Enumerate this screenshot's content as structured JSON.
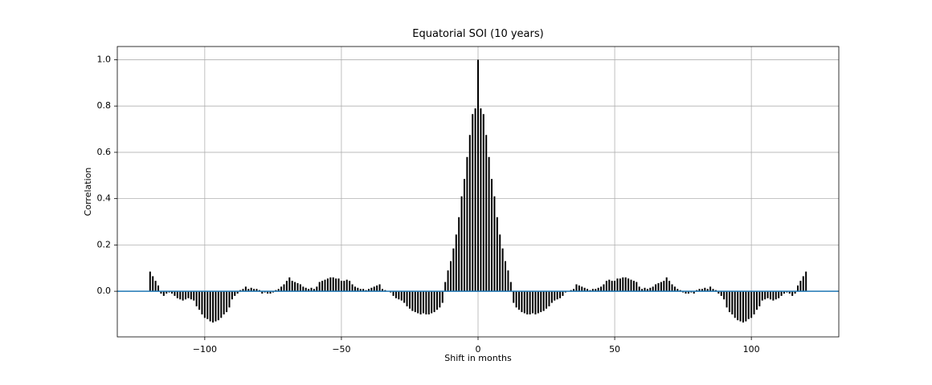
{
  "chart_data": {
    "type": "vlines",
    "title": "Equatorial SOI (10 years)",
    "xlabel": "Shift in months",
    "ylabel": "Correlation",
    "x": [
      -120,
      -119,
      -118,
      -117,
      -116,
      -115,
      -114,
      -113,
      -112,
      -111,
      -110,
      -109,
      -108,
      -107,
      -106,
      -105,
      -104,
      -103,
      -102,
      -101,
      -100,
      -99,
      -98,
      -97,
      -96,
      -95,
      -94,
      -93,
      -92,
      -91,
      -90,
      -89,
      -88,
      -87,
      -86,
      -85,
      -84,
      -83,
      -82,
      -81,
      -80,
      -79,
      -78,
      -77,
      -76,
      -75,
      -74,
      -73,
      -72,
      -71,
      -70,
      -69,
      -68,
      -67,
      -66,
      -65,
      -64,
      -63,
      -62,
      -61,
      -60,
      -59,
      -58,
      -57,
      -56,
      -55,
      -54,
      -53,
      -52,
      -51,
      -50,
      -49,
      -48,
      -47,
      -46,
      -45,
      -44,
      -43,
      -42,
      -41,
      -40,
      -39,
      -38,
      -37,
      -36,
      -35,
      -34,
      -33,
      -32,
      -31,
      -30,
      -29,
      -28,
      -27,
      -26,
      -25,
      -24,
      -23,
      -22,
      -21,
      -20,
      -19,
      -18,
      -17,
      -16,
      -15,
      -14,
      -13,
      -12,
      -11,
      -10,
      -9,
      -8,
      -7,
      -6,
      -5,
      -4,
      -3,
      -2,
      -1,
      0,
      1,
      2,
      3,
      4,
      5,
      6,
      7,
      8,
      9,
      10,
      11,
      12,
      13,
      14,
      15,
      16,
      17,
      18,
      19,
      20,
      21,
      22,
      23,
      24,
      25,
      26,
      27,
      28,
      29,
      30,
      31,
      32,
      33,
      34,
      35,
      36,
      37,
      38,
      39,
      40,
      41,
      42,
      43,
      44,
      45,
      46,
      47,
      48,
      49,
      50,
      51,
      52,
      53,
      54,
      55,
      56,
      57,
      58,
      59,
      60,
      61,
      62,
      63,
      64,
      65,
      66,
      67,
      68,
      69,
      70,
      71,
      72,
      73,
      74,
      75,
      76,
      77,
      78,
      79,
      80,
      81,
      82,
      83,
      84,
      85,
      86,
      87,
      88,
      89,
      90,
      91,
      92,
      93,
      94,
      95,
      96,
      97,
      98,
      99,
      100,
      101,
      102,
      103,
      104,
      105,
      106,
      107,
      108,
      109,
      110,
      111,
      112,
      113,
      114,
      115,
      116,
      117,
      118,
      119,
      120
    ],
    "values": [
      0.085,
      0.065,
      0.045,
      0.025,
      -0.01,
      -0.02,
      -0.01,
      -0.005,
      -0.01,
      -0.02,
      -0.03,
      -0.035,
      -0.04,
      -0.035,
      -0.03,
      -0.035,
      -0.04,
      -0.065,
      -0.08,
      -0.1,
      -0.115,
      -0.12,
      -0.13,
      -0.135,
      -0.13,
      -0.125,
      -0.115,
      -0.1,
      -0.09,
      -0.07,
      -0.035,
      -0.02,
      -0.01,
      0.005,
      0.01,
      0.02,
      0.01,
      0.015,
      0.01,
      0.01,
      0.005,
      -0.01,
      -0.005,
      -0.01,
      -0.01,
      -0.005,
      0.005,
      0.01,
      0.02,
      0.03,
      0.045,
      0.06,
      0.045,
      0.04,
      0.035,
      0.03,
      0.02,
      0.015,
      0.01,
      0.015,
      0.01,
      0.02,
      0.04,
      0.045,
      0.05,
      0.055,
      0.06,
      0.06,
      0.055,
      0.055,
      0.045,
      0.045,
      0.05,
      0.045,
      0.03,
      0.02,
      0.015,
      0.01,
      0.01,
      0.005,
      0.01,
      0.015,
      0.02,
      0.025,
      0.03,
      0.01,
      0.005,
      0,
      -0.005,
      -0.02,
      -0.03,
      -0.035,
      -0.04,
      -0.05,
      -0.065,
      -0.075,
      -0.085,
      -0.09,
      -0.095,
      -0.1,
      -0.095,
      -0.1,
      -0.1,
      -0.095,
      -0.09,
      -0.08,
      -0.07,
      -0.05,
      0.04,
      0.09,
      0.13,
      0.185,
      0.245,
      0.32,
      0.41,
      0.485,
      0.58,
      0.675,
      0.765,
      0.79,
      1.0,
      0.79,
      0.765,
      0.675,
      0.58,
      0.485,
      0.41,
      0.32,
      0.245,
      0.185,
      0.13,
      0.09,
      0.04,
      -0.05,
      -0.07,
      -0.08,
      -0.09,
      -0.095,
      -0.1,
      -0.1,
      -0.095,
      -0.1,
      -0.095,
      -0.09,
      -0.085,
      -0.075,
      -0.065,
      -0.05,
      -0.04,
      -0.035,
      -0.03,
      -0.02,
      -0.005,
      0,
      0.005,
      0.01,
      0.03,
      0.025,
      0.02,
      0.015,
      0.01,
      0.005,
      0.01,
      0.01,
      0.015,
      0.02,
      0.03,
      0.045,
      0.05,
      0.045,
      0.045,
      0.055,
      0.055,
      0.06,
      0.06,
      0.055,
      0.05,
      0.045,
      0.04,
      0.02,
      0.01,
      0.015,
      0.01,
      0.015,
      0.02,
      0.03,
      0.035,
      0.04,
      0.045,
      0.06,
      0.045,
      0.03,
      0.02,
      0.01,
      0.005,
      -0.005,
      -0.01,
      -0.01,
      -0.005,
      -0.01,
      0.005,
      0.01,
      0.01,
      0.015,
      0.01,
      0.02,
      0.01,
      0.005,
      -0.01,
      -0.02,
      -0.035,
      -0.07,
      -0.09,
      -0.1,
      -0.115,
      -0.125,
      -0.13,
      -0.135,
      -0.13,
      -0.12,
      -0.115,
      -0.1,
      -0.08,
      -0.065,
      -0.04,
      -0.035,
      -0.03,
      -0.035,
      -0.04,
      -0.035,
      -0.03,
      -0.02,
      -0.01,
      -0.005,
      -0.01,
      -0.02,
      -0.01,
      0.025,
      0.045,
      0.065,
      0.085
    ],
    "color": "#000000",
    "baseline_color": "#1f77b4",
    "xlim": [
      -132,
      132
    ],
    "ylim": [
      -0.197,
      1.057
    ],
    "xticks": [
      {
        "value": -100,
        "label": "−100"
      },
      {
        "value": -50,
        "label": "−50"
      },
      0,
      50,
      100
    ],
    "yticks": [
      {
        "value": 0,
        "label": "0.0"
      },
      {
        "value": 0.2,
        "label": "0.2"
      },
      {
        "value": 0.4,
        "label": "0.4"
      },
      {
        "value": 0.6,
        "label": "0.6"
      },
      {
        "value": 0.8,
        "label": "0.8"
      },
      {
        "value": 1,
        "label": "1.0"
      }
    ],
    "grid": true
  }
}
